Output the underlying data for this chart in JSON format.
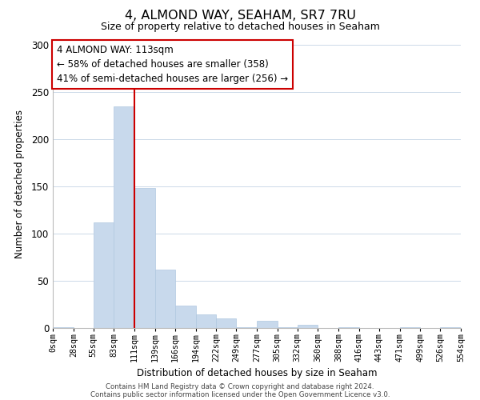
{
  "title": "4, ALMOND WAY, SEAHAM, SR7 7RU",
  "subtitle": "Size of property relative to detached houses in Seaham",
  "xlabel": "Distribution of detached houses by size in Seaham",
  "ylabel": "Number of detached properties",
  "bar_color": "#c8d9ec",
  "bar_edge_color": "#b0c8e0",
  "bin_edges": [
    0,
    28,
    55,
    83,
    111,
    139,
    166,
    194,
    222,
    249,
    277,
    305,
    332,
    360,
    388,
    416,
    443,
    471,
    499,
    526,
    554
  ],
  "bar_heights": [
    1,
    0,
    112,
    235,
    148,
    62,
    24,
    14,
    10,
    1,
    8,
    1,
    3,
    0,
    1,
    0,
    0,
    1,
    0,
    1
  ],
  "vline_x": 111,
  "vline_color": "#cc0000",
  "annotation_line1": "4 ALMOND WAY: 113sqm",
  "annotation_line2": "← 58% of detached houses are smaller (358)",
  "annotation_line3": "41% of semi-detached houses are larger (256) →",
  "ylim": [
    0,
    305
  ],
  "yticks": [
    0,
    50,
    100,
    150,
    200,
    250,
    300
  ],
  "tick_labels": [
    "0sqm",
    "28sqm",
    "55sqm",
    "83sqm",
    "111sqm",
    "139sqm",
    "166sqm",
    "194sqm",
    "222sqm",
    "249sqm",
    "277sqm",
    "305sqm",
    "332sqm",
    "360sqm",
    "388sqm",
    "416sqm",
    "443sqm",
    "471sqm",
    "499sqm",
    "526sqm",
    "554sqm"
  ],
  "footer_line1": "Contains HM Land Registry data © Crown copyright and database right 2024.",
  "footer_line2": "Contains public sector information licensed under the Open Government Licence v3.0.",
  "background_color": "#ffffff",
  "grid_color": "#ccd9e8"
}
